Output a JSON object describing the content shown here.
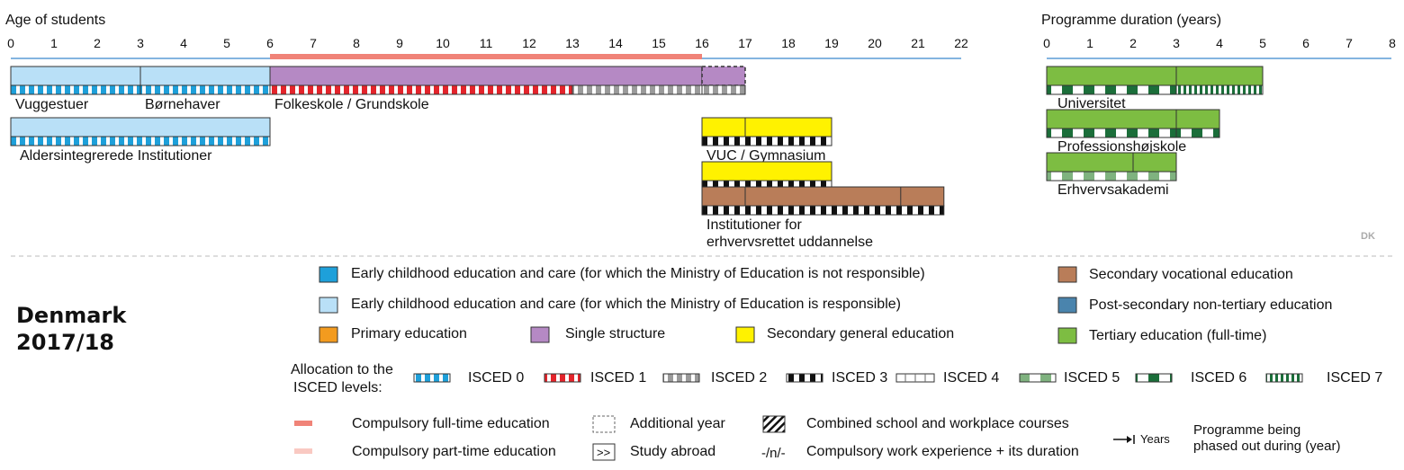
{
  "age_axis": {
    "title": "Age of students",
    "ticks": [
      "0",
      "1",
      "2",
      "3",
      "4",
      "5",
      "6",
      "7",
      "8",
      "9",
      "10",
      "11",
      "12",
      "13",
      "14",
      "15",
      "16",
      "17",
      "18",
      "19",
      "20",
      "21",
      "22"
    ]
  },
  "duration_axis": {
    "title": "Programme duration (years)",
    "ticks": [
      "0",
      "1",
      "2",
      "3",
      "4",
      "5",
      "6",
      "7",
      "8"
    ]
  },
  "compulsory_range": [
    6,
    16
  ],
  "country": {
    "name": "Denmark",
    "year": "2017/18",
    "code": "DK"
  },
  "colors": {
    "ecec_not_ministry": "#1ea0da",
    "ecec_ministry": "#b9e0f7",
    "primary": "#f39b1f",
    "single_structure": "#b589c4",
    "secondary_general": "#fff200",
    "secondary_vocational": "#b97d59",
    "post_secondary": "#4a84ad",
    "tertiary": "#7dbd42",
    "compulsory_full": "#f08378",
    "compulsory_part": "#f9c9c2"
  },
  "programmes": [
    {
      "label": "Vuggestuer",
      "start": 0,
      "end": 3,
      "row": 0,
      "fill": "ecec_ministry",
      "isced": "0"
    },
    {
      "label": "Børnehaver",
      "start": 3,
      "end": 6,
      "row": 0,
      "fill": "ecec_ministry",
      "isced": "0"
    },
    {
      "label": "Folkeskole / Grundskole",
      "start": 6,
      "end": 16,
      "row": 0,
      "fill": "single_structure",
      "isced": "1-2"
    },
    {
      "label": "",
      "start": 16,
      "end": 17,
      "row": 0,
      "fill": "single_structure",
      "isced": "2",
      "additional_year": true
    },
    {
      "label": "Aldersintegrerede Institutioner",
      "start": 0,
      "end": 6,
      "row": 1,
      "fill": "ecec_ministry",
      "isced": "0"
    },
    {
      "label": "VUC / Gymnasium",
      "start": 16,
      "end": 19,
      "row": 1,
      "fill": "secondary_general",
      "isced": "3"
    },
    {
      "label": "",
      "start": 16,
      "end": 19,
      "row": 2,
      "fill": "secondary_general",
      "isced": "3"
    },
    {
      "label": "Institutioner for",
      "label2": "erhvervsrettet uddannelse",
      "start": 16,
      "end": 21.6,
      "row": 3,
      "fill": "secondary_vocational",
      "isced": "3"
    }
  ],
  "tertiary": [
    {
      "label": "Universitet",
      "duration": 5,
      "split": 3
    },
    {
      "label": "Professionshøjskole",
      "duration": 4,
      "split": 3
    },
    {
      "label": "Erhvervsakademi",
      "duration": 3,
      "split": 2
    }
  ],
  "legend": {
    "ecec_not_ministry": "Early childhood education and care (for which the Ministry of Education is not responsible)",
    "ecec_ministry": "Early childhood education and care (for which the Ministry of Education is responsible)",
    "primary": "Primary education",
    "single_structure": "Single structure",
    "secondary_general": "Secondary general education",
    "secondary_vocational": "Secondary vocational education",
    "post_secondary": "Post-secondary non-tertiary education",
    "tertiary": "Tertiary education (full-time)",
    "allocation_line1": "Allocation to the",
    "allocation_line2": "ISCED levels:",
    "isced": [
      "ISCED 0",
      "ISCED 1",
      "ISCED 2",
      "ISCED 3",
      "ISCED 4",
      "ISCED 5",
      "ISCED 6",
      "ISCED 7"
    ],
    "compulsory_full": "Compulsory full-time education",
    "compulsory_part": "Compulsory part-time education",
    "additional_year": "Additional year",
    "study_abroad": "Study abroad",
    "study_abroad_symbol": ">>",
    "combined": "Combined school and workplace courses",
    "work_experience_symbol": "-/n/-",
    "work_experience": "Compulsory work experience + its duration",
    "years_label": "Years",
    "phased_out_line1": "Programme being",
    "phased_out_line2": "phased out during (year)"
  }
}
